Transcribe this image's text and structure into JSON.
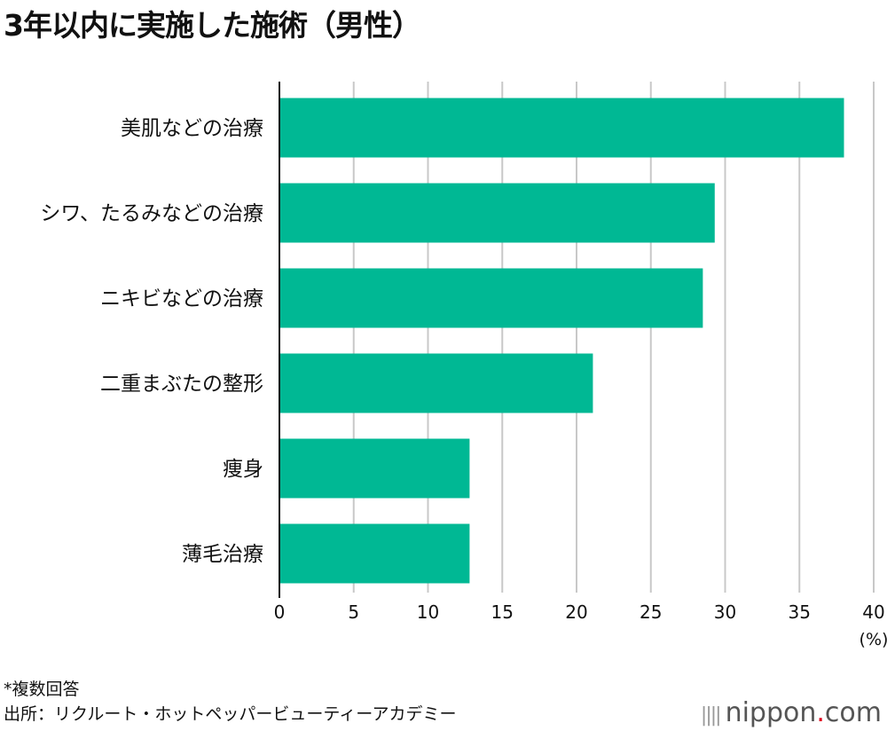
{
  "title": "3年以内に実施した施術（男性）",
  "chart_data": {
    "type": "bar",
    "orientation": "horizontal",
    "categories": [
      "美肌などの治療",
      "シワ、たるみなどの治療",
      "ニキビなどの治療",
      "二重まぶたの整形",
      "痩身",
      "薄毛治療"
    ],
    "values": [
      38.0,
      29.3,
      28.5,
      21.1,
      12.8,
      12.8
    ],
    "xlim": [
      0,
      40
    ],
    "xticks": [
      0,
      5,
      10,
      15,
      20,
      25,
      30,
      35,
      40
    ],
    "xunit": "(%)",
    "grid": true,
    "bar_color": "#00b894"
  },
  "footer": {
    "note": "*複数回答",
    "source": "出所：リクルート・ホットペッパービューティーアカデミー",
    "logo_main": "nippon",
    "logo_dot": ".",
    "logo_tail": "com"
  }
}
